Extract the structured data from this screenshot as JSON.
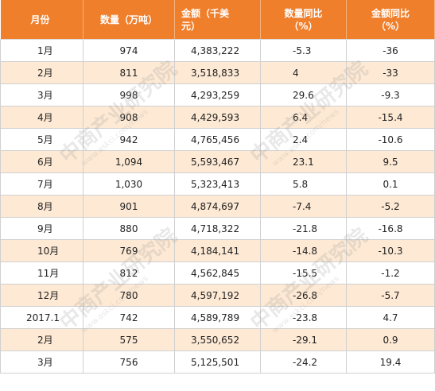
{
  "table": {
    "headers": {
      "month": "月份",
      "quantity": "数量（万吨）",
      "amount_line1": "金额（千美",
      "amount_line2": "元）",
      "qty_yoy_line1": "数量同比",
      "qty_yoy_line2": "（%）",
      "amt_yoy_line1": "金额同比",
      "amt_yoy_line2": "（%）"
    },
    "rows": [
      {
        "month": "1月",
        "quantity": "974",
        "amount": "4,383,222",
        "qty_yoy": "-5.3",
        "amt_yoy": "-36"
      },
      {
        "month": "2月",
        "quantity": "811",
        "amount": "3,518,833",
        "qty_yoy": "4",
        "amt_yoy": "-33"
      },
      {
        "month": "3月",
        "quantity": "998",
        "amount": "4,293,259",
        "qty_yoy": "29.6",
        "amt_yoy": "-9.3"
      },
      {
        "month": "4月",
        "quantity": "908",
        "amount": "4,429,593",
        "qty_yoy": "6.4",
        "amt_yoy": "-15.4"
      },
      {
        "month": "5月",
        "quantity": "942",
        "amount": "4,765,456",
        "qty_yoy": "2.4",
        "amt_yoy": "-10.6"
      },
      {
        "month": "6月",
        "quantity": "1,094",
        "amount": "5,593,467",
        "qty_yoy": "23.1",
        "amt_yoy": "9.5"
      },
      {
        "month": "7月",
        "quantity": "1,030",
        "amount": "5,323,413",
        "qty_yoy": "5.8",
        "amt_yoy": "0.1"
      },
      {
        "month": "8月",
        "quantity": "901",
        "amount": "4,874,697",
        "qty_yoy": "-7.4",
        "amt_yoy": "-5.2"
      },
      {
        "month": "9月",
        "quantity": "880",
        "amount": "4,718,322",
        "qty_yoy": "-21.8",
        "amt_yoy": "-16.8"
      },
      {
        "month": "10月",
        "quantity": "769",
        "amount": "4,184,141",
        "qty_yoy": "-14.8",
        "amt_yoy": "-10.3"
      },
      {
        "month": "11月",
        "quantity": "812",
        "amount": "4,562,845",
        "qty_yoy": "-15.5",
        "amt_yoy": "-1.2"
      },
      {
        "month": "12月",
        "quantity": "780",
        "amount": "4,597,192",
        "qty_yoy": "-26.8",
        "amt_yoy": "-5.7"
      },
      {
        "month": "2017.1",
        "quantity": "742",
        "amount": "4,589,789",
        "qty_yoy": "-23.8",
        "amt_yoy": "4.7"
      },
      {
        "month": "2月",
        "quantity": "575",
        "amount": "3,550,652",
        "qty_yoy": "-29.1",
        "amt_yoy": "0.9"
      },
      {
        "month": "3月",
        "quantity": "756",
        "amount": "5,125,501",
        "qty_yoy": "-24.2",
        "amt_yoy": "19.4"
      }
    ]
  },
  "watermark": {
    "text": "中商产业研究院",
    "url": "www.askci.com/news"
  },
  "colors": {
    "header_bg": "#f07f2c",
    "stripe_bg": "#fde9d4"
  }
}
